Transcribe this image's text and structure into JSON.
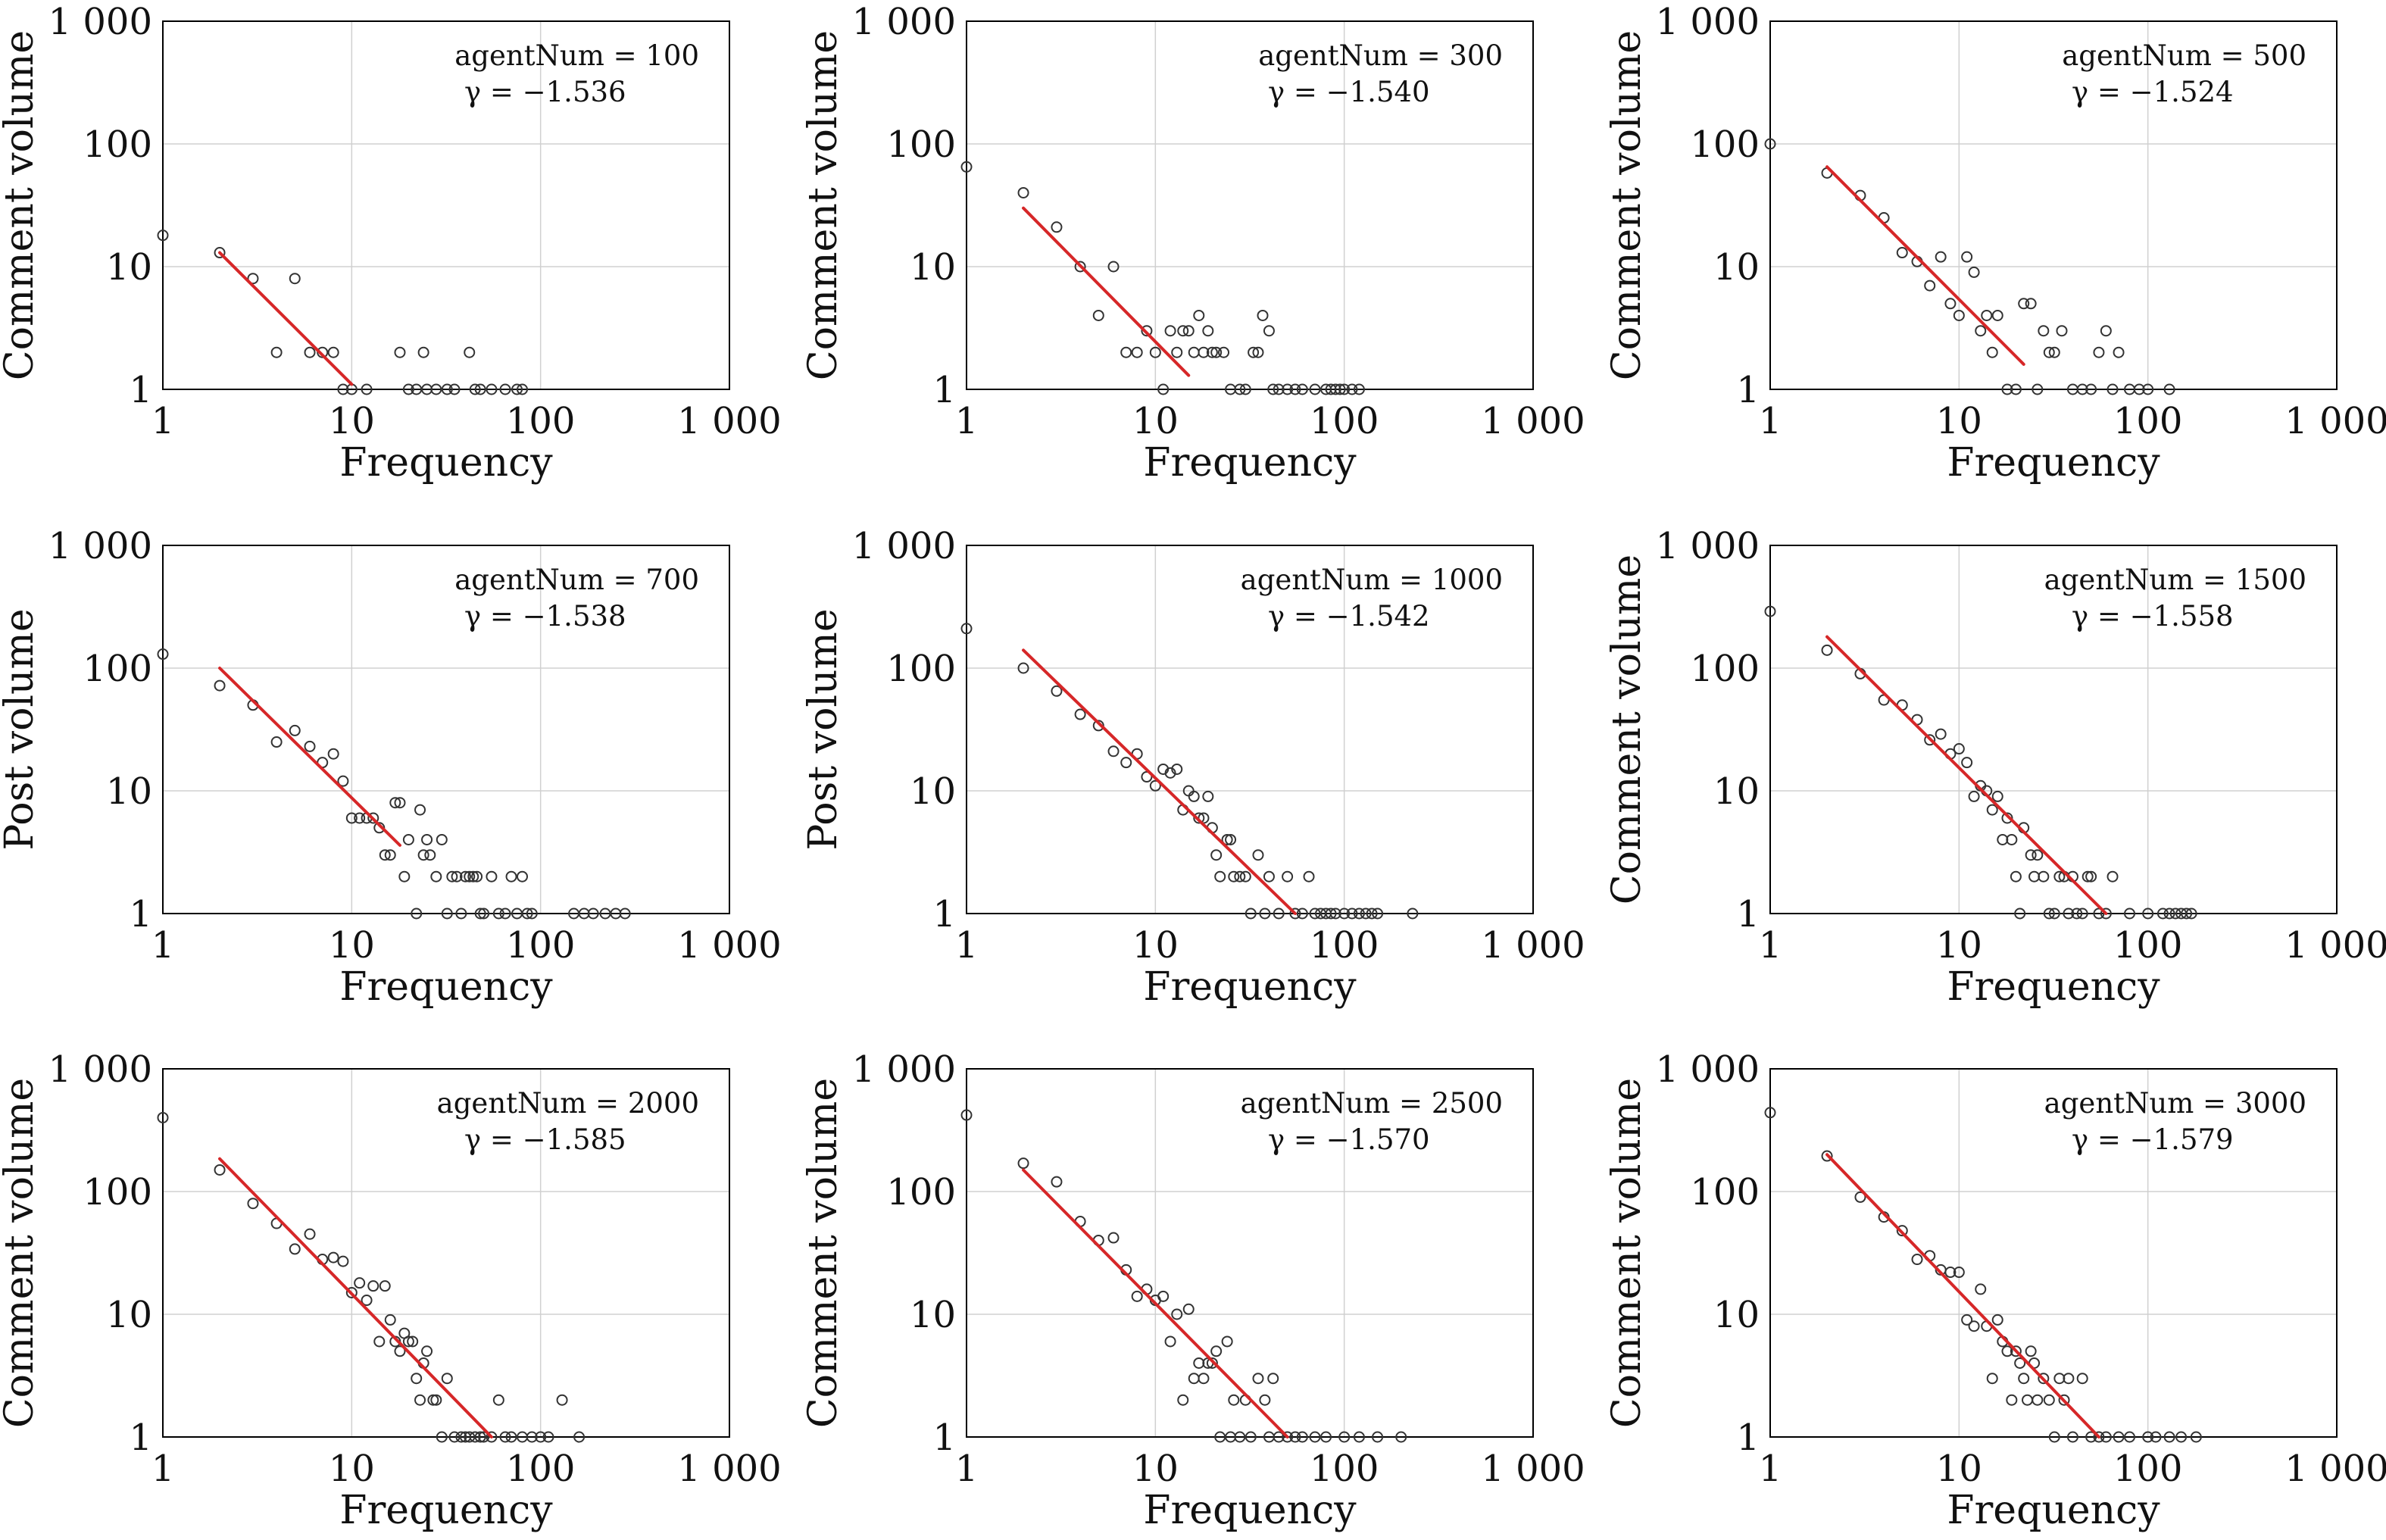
{
  "colors": {
    "fit_line": "#d62728",
    "grid": "#d0d0d0",
    "marker_edge": "#333333",
    "axes": "#000000"
  },
  "chart_data": [
    {
      "type": "scatter",
      "xlabel": "Frequency",
      "ylabel": "Comment volume",
      "xscale": "log",
      "yscale": "log",
      "xlim": [
        1,
        1000
      ],
      "ylim": [
        1,
        1000
      ],
      "x_ticks": [
        "1",
        "10",
        "100",
        "1 000"
      ],
      "y_ticks": [
        "1",
        "10",
        "100",
        "1 000"
      ],
      "grid": true,
      "agent_text": "agentNum = 100",
      "gamma_text": "γ = −1.536",
      "agentNum": 100,
      "gamma": -1.536,
      "fit": {
        "x": [
          2,
          10
        ],
        "y": [
          13,
          1.1
        ]
      },
      "points": {
        "x": [
          1,
          2,
          3,
          4,
          5,
          6,
          7,
          8,
          9,
          10,
          12,
          18,
          20,
          22,
          24,
          25,
          28,
          32,
          35,
          42,
          45,
          48,
          55,
          65,
          75,
          80
        ],
        "y": [
          18,
          13,
          8,
          2,
          8,
          2,
          2,
          2,
          1,
          1,
          1,
          2,
          1,
          1,
          2,
          1,
          1,
          1,
          1,
          2,
          1,
          1,
          1,
          1,
          1,
          1
        ]
      }
    },
    {
      "type": "scatter",
      "xlabel": "Frequency",
      "ylabel": "Comment volume",
      "xscale": "log",
      "yscale": "log",
      "xlim": [
        1,
        1000
      ],
      "ylim": [
        1,
        1000
      ],
      "x_ticks": [
        "1",
        "10",
        "100",
        "1 000"
      ],
      "y_ticks": [
        "1",
        "10",
        "100",
        "1 000"
      ],
      "grid": true,
      "agent_text": "agentNum = 300",
      "gamma_text": "γ = −1.540",
      "agentNum": 300,
      "gamma": -1.54,
      "fit": {
        "x": [
          2,
          15
        ],
        "y": [
          30,
          1.3
        ]
      },
      "points": {
        "x": [
          1,
          2,
          3,
          4,
          5,
          6,
          7,
          8,
          9,
          10,
          11,
          12,
          13,
          14,
          15,
          16,
          17,
          18,
          19,
          20,
          21,
          23,
          25,
          28,
          30,
          33,
          35,
          37,
          40,
          42,
          45,
          50,
          55,
          60,
          70,
          80,
          85,
          90,
          95,
          100,
          110,
          120
        ],
        "y": [
          65,
          40,
          21,
          10,
          4,
          10,
          2,
          2,
          3,
          2,
          1,
          3,
          2,
          3,
          3,
          2,
          4,
          2,
          3,
          2,
          2,
          2,
          1,
          1,
          1,
          2,
          2,
          4,
          3,
          1,
          1,
          1,
          1,
          1,
          1,
          1,
          1,
          1,
          1,
          1,
          1,
          1
        ]
      }
    },
    {
      "type": "scatter",
      "xlabel": "Frequency",
      "ylabel": "Comment volume",
      "xscale": "log",
      "yscale": "log",
      "xlim": [
        1,
        1000
      ],
      "ylim": [
        1,
        1000
      ],
      "x_ticks": [
        "1",
        "10",
        "100",
        "1 000"
      ],
      "y_ticks": [
        "1",
        "10",
        "100",
        "1 000"
      ],
      "grid": true,
      "agent_text": "agentNum = 500",
      "gamma_text": "γ = −1.524",
      "agentNum": 500,
      "gamma": -1.524,
      "fit": {
        "x": [
          2,
          22
        ],
        "y": [
          65,
          1.6
        ]
      },
      "points": {
        "x": [
          1,
          2,
          3,
          4,
          5,
          6,
          7,
          8,
          9,
          10,
          11,
          12,
          13,
          14,
          15,
          16,
          18,
          20,
          22,
          24,
          26,
          28,
          30,
          32,
          35,
          40,
          45,
          50,
          55,
          60,
          65,
          70,
          80,
          90,
          100,
          130
        ],
        "y": [
          100,
          58,
          38,
          25,
          13,
          11,
          7,
          12,
          5,
          4,
          12,
          9,
          3,
          4,
          2,
          4,
          1,
          1,
          5,
          5,
          1,
          3,
          2,
          2,
          3,
          1,
          1,
          1,
          2,
          3,
          1,
          2,
          1,
          1,
          1,
          1
        ]
      }
    },
    {
      "type": "scatter",
      "xlabel": "Frequency",
      "ylabel": "Post volume",
      "xscale": "log",
      "yscale": "log",
      "xlim": [
        1,
        1000
      ],
      "ylim": [
        1,
        1000
      ],
      "x_ticks": [
        "1",
        "10",
        "100",
        "1 000"
      ],
      "y_ticks": [
        "1",
        "10",
        "100",
        "1 000"
      ],
      "grid": true,
      "agent_text": "agentNum = 700",
      "gamma_text": "γ = −1.538",
      "agentNum": 700,
      "gamma": -1.538,
      "fit": {
        "x": [
          2,
          18
        ],
        "y": [
          100,
          3.6
        ]
      },
      "points": {
        "x": [
          1,
          2,
          3,
          4,
          5,
          6,
          7,
          8,
          9,
          10,
          11,
          12,
          13,
          14,
          15,
          16,
          17,
          18,
          19,
          20,
          22,
          23,
          24,
          25,
          26,
          28,
          30,
          32,
          34,
          36,
          38,
          40,
          42,
          44,
          46,
          48,
          50,
          55,
          60,
          65,
          70,
          75,
          80,
          85,
          90,
          150,
          170,
          190,
          220,
          250,
          280
        ],
        "y": [
          130,
          72,
          50,
          25,
          31,
          23,
          17,
          20,
          12,
          6,
          6,
          6,
          6,
          5,
          3,
          3,
          8,
          8,
          2,
          4,
          1,
          7,
          3,
          4,
          3,
          2,
          4,
          1,
          2,
          2,
          1,
          2,
          2,
          2,
          2,
          1,
          1,
          2,
          1,
          1,
          2,
          1,
          2,
          1,
          1,
          1,
          1,
          1,
          1,
          1,
          1
        ]
      }
    },
    {
      "type": "scatter",
      "xlabel": "Frequency",
      "ylabel": "Post volume",
      "xscale": "log",
      "yscale": "log",
      "xlim": [
        1,
        1000
      ],
      "ylim": [
        1,
        1000
      ],
      "x_ticks": [
        "1",
        "10",
        "100",
        "1 000"
      ],
      "y_ticks": [
        "1",
        "10",
        "100",
        "1 000"
      ],
      "grid": true,
      "agent_text": "agentNum = 1000",
      "gamma_text": "γ = −1.542",
      "agentNum": 1000,
      "gamma": -1.542,
      "fit": {
        "x": [
          2,
          55
        ],
        "y": [
          140,
          0.8
        ]
      },
      "points": {
        "x": [
          1,
          2,
          3,
          4,
          5,
          6,
          7,
          8,
          9,
          10,
          11,
          12,
          13,
          14,
          15,
          16,
          17,
          18,
          19,
          20,
          21,
          22,
          24,
          25,
          26,
          28,
          30,
          32,
          35,
          38,
          40,
          45,
          50,
          55,
          60,
          65,
          70,
          75,
          80,
          85,
          90,
          100,
          110,
          120,
          130,
          140,
          150,
          230
        ],
        "y": [
          210,
          100,
          65,
          42,
          34,
          21,
          17,
          20,
          13,
          11,
          15,
          14,
          15,
          7,
          10,
          9,
          6,
          6,
          9,
          5,
          3,
          2,
          4,
          4,
          2,
          2,
          2,
          1,
          3,
          1,
          2,
          1,
          2,
          1,
          1,
          2,
          1,
          1,
          1,
          1,
          1,
          1,
          1,
          1,
          1,
          1,
          1,
          1
        ]
      }
    },
    {
      "type": "scatter",
      "xlabel": "Frequency",
      "ylabel": "Comment volume",
      "xscale": "log",
      "yscale": "log",
      "xlim": [
        1,
        1000
      ],
      "ylim": [
        1,
        1000
      ],
      "x_ticks": [
        "1",
        "10",
        "100",
        "1 000"
      ],
      "y_ticks": [
        "1",
        "10",
        "100",
        "1 000"
      ],
      "grid": true,
      "agent_text": "agentNum = 1500",
      "gamma_text": "γ = −1.558",
      "agentNum": 1500,
      "gamma": -1.558,
      "fit": {
        "x": [
          2,
          60
        ],
        "y": [
          180,
          0.9
        ]
      },
      "points": {
        "x": [
          1,
          2,
          3,
          4,
          5,
          6,
          7,
          8,
          9,
          10,
          11,
          12,
          13,
          14,
          15,
          16,
          17,
          18,
          19,
          20,
          21,
          22,
          24,
          25,
          26,
          28,
          30,
          32,
          34,
          36,
          38,
          40,
          42,
          45,
          48,
          50,
          55,
          60,
          65,
          80,
          100,
          120,
          130,
          140,
          150,
          160,
          170
        ],
        "y": [
          290,
          140,
          90,
          55,
          50,
          38,
          26,
          29,
          20,
          22,
          17,
          9,
          11,
          10,
          7,
          9,
          4,
          6,
          4,
          2,
          1,
          5,
          3,
          2,
          3,
          2,
          1,
          1,
          2,
          2,
          1,
          2,
          1,
          1,
          2,
          2,
          1,
          1,
          2,
          1,
          1,
          1,
          1,
          1,
          1,
          1,
          1
        ]
      }
    },
    {
      "type": "scatter",
      "xlabel": "Frequency",
      "ylabel": "Comment volume",
      "xscale": "log",
      "yscale": "log",
      "xlim": [
        1,
        1000
      ],
      "ylim": [
        1,
        1000
      ],
      "x_ticks": [
        "1",
        "10",
        "100",
        "1 000"
      ],
      "y_ticks": [
        "1",
        "10",
        "100",
        "1 000"
      ],
      "grid": true,
      "agent_text": "agentNum = 2000",
      "gamma_text": "γ = −1.585",
      "agentNum": 2000,
      "gamma": -1.585,
      "fit": {
        "x": [
          2,
          55
        ],
        "y": [
          185,
          0.9
        ]
      },
      "points": {
        "x": [
          1,
          2,
          3,
          4,
          5,
          6,
          7,
          8,
          9,
          10,
          11,
          12,
          13,
          14,
          15,
          16,
          17,
          18,
          19,
          20,
          21,
          22,
          23,
          24,
          25,
          27,
          28,
          30,
          32,
          35,
          38,
          40,
          42,
          45,
          48,
          50,
          55,
          60,
          65,
          70,
          80,
          90,
          100,
          110,
          130,
          160
        ],
        "y": [
          400,
          150,
          80,
          55,
          34,
          45,
          28,
          29,
          27,
          15,
          18,
          13,
          17,
          6,
          17,
          9,
          6,
          5,
          7,
          6,
          6,
          3,
          2,
          4,
          5,
          2,
          2,
          1,
          3,
          1,
          1,
          1,
          1,
          1,
          1,
          1,
          1,
          2,
          1,
          1,
          1,
          1,
          1,
          1,
          2,
          1
        ]
      }
    },
    {
      "type": "scatter",
      "xlabel": "Frequency",
      "ylabel": "Comment volume",
      "xscale": "log",
      "yscale": "log",
      "xlim": [
        1,
        1000
      ],
      "ylim": [
        1,
        1000
      ],
      "x_ticks": [
        "1",
        "10",
        "100",
        "1 000"
      ],
      "y_ticks": [
        "1",
        "10",
        "100",
        "1 000"
      ],
      "grid": true,
      "agent_text": "agentNum = 2500",
      "gamma_text": "γ = −1.570",
      "agentNum": 2500,
      "gamma": -1.57,
      "fit": {
        "x": [
          2,
          50
        ],
        "y": [
          150,
          0.9
        ]
      },
      "points": {
        "x": [
          1,
          2,
          3,
          4,
          5,
          6,
          7,
          8,
          9,
          10,
          11,
          12,
          13,
          14,
          15,
          16,
          17,
          18,
          19,
          20,
          21,
          22,
          24,
          25,
          26,
          28,
          30,
          32,
          35,
          38,
          40,
          42,
          45,
          50,
          55,
          60,
          70,
          80,
          100,
          120,
          150,
          200
        ],
        "y": [
          420,
          170,
          120,
          57,
          40,
          42,
          23,
          14,
          16,
          13,
          14,
          6,
          10,
          2,
          11,
          3,
          4,
          3,
          4,
          4,
          5,
          1,
          6,
          1,
          2,
          1,
          2,
          1,
          3,
          2,
          1,
          3,
          1,
          1,
          1,
          1,
          1,
          1,
          1,
          1,
          1,
          1
        ]
      }
    },
    {
      "type": "scatter",
      "xlabel": "Frequency",
      "ylabel": "Comment volume",
      "xscale": "log",
      "yscale": "log",
      "xlim": [
        1,
        1000
      ],
      "ylim": [
        1,
        1000
      ],
      "x_ticks": [
        "1",
        "10",
        "100",
        "1 000"
      ],
      "y_ticks": [
        "1",
        "10",
        "100",
        "1 000"
      ],
      "grid": true,
      "agent_text": "agentNum = 3000",
      "gamma_text": "γ = −1.579",
      "agentNum": 3000,
      "gamma": -1.579,
      "fit": {
        "x": [
          2,
          55
        ],
        "y": [
          200,
          0.9
        ]
      },
      "points": {
        "x": [
          1,
          2,
          3,
          4,
          5,
          6,
          7,
          8,
          9,
          10,
          11,
          12,
          13,
          14,
          15,
          16,
          17,
          18,
          19,
          20,
          21,
          22,
          23,
          24,
          25,
          26,
          28,
          30,
          32,
          34,
          36,
          38,
          40,
          45,
          50,
          55,
          60,
          70,
          80,
          100,
          110,
          130,
          150,
          180
        ],
        "y": [
          440,
          195,
          90,
          62,
          48,
          28,
          30,
          23,
          22,
          22,
          9,
          8,
          16,
          8,
          3,
          9,
          6,
          5,
          2,
          5,
          4,
          3,
          2,
          5,
          4,
          2,
          3,
          2,
          1,
          3,
          2,
          3,
          1,
          3,
          1,
          1,
          1,
          1,
          1,
          1,
          1,
          1,
          1,
          1
        ]
      }
    }
  ]
}
